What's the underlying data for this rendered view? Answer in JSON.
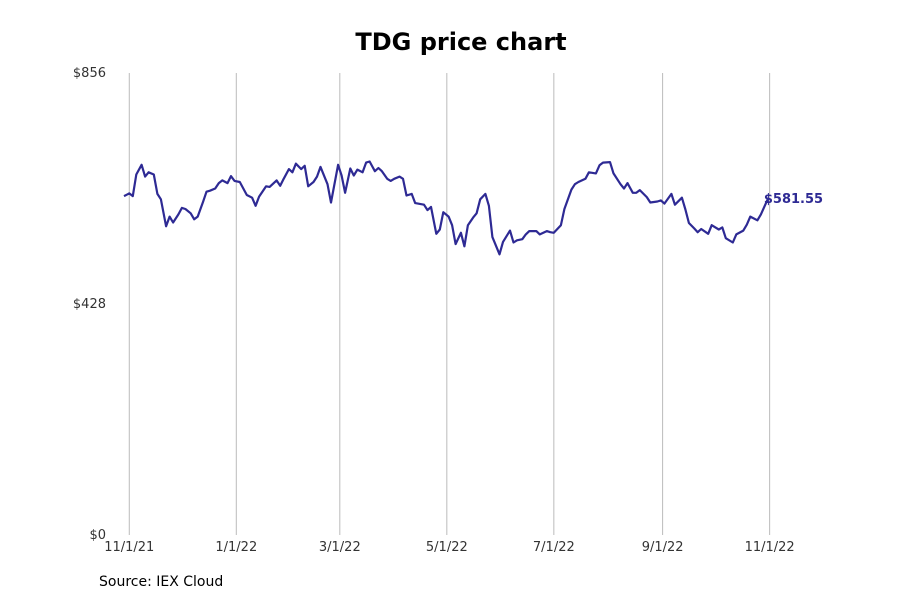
{
  "chart_data": {
    "type": "line",
    "title": "TDG price chart",
    "source": "Source: IEX Cloud",
    "xlabel": "",
    "ylabel": "",
    "grid": "vertical",
    "line_color": "#2e2a94",
    "grid_color": "#bbbbbb",
    "ylim": [
      0,
      856
    ],
    "y_ticks": [
      {
        "value": 0,
        "label": "$0"
      },
      {
        "value": 428,
        "label": "$428"
      },
      {
        "value": 856,
        "label": "$856"
      }
    ],
    "xlim": [
      "2021-10-25",
      "2022-11-28"
    ],
    "x_ticks": [
      {
        "date": "2021-11-01",
        "label": "11/1/21"
      },
      {
        "date": "2022-01-01",
        "label": "1/1/22"
      },
      {
        "date": "2022-03-01",
        "label": "3/1/22"
      },
      {
        "date": "2022-05-01",
        "label": "5/1/22"
      },
      {
        "date": "2022-07-01",
        "label": "7/1/22"
      },
      {
        "date": "2022-09-01",
        "label": "9/1/22"
      },
      {
        "date": "2022-11-01",
        "label": "11/1/22"
      }
    ],
    "last_value_label": "$581.55",
    "series": [
      {
        "x": [
          "2021-10-29",
          "2021-11-01",
          "2021-11-03",
          "2021-11-05",
          "2021-11-08",
          "2021-11-10",
          "2021-11-12",
          "2021-11-15",
          "2021-11-17",
          "2021-11-19",
          "2021-11-22",
          "2021-11-24",
          "2021-11-26",
          "2021-11-29",
          "2021-12-01",
          "2021-12-03",
          "2021-12-06",
          "2021-12-08",
          "2021-12-10",
          "2021-12-13",
          "2021-12-15",
          "2021-12-17",
          "2021-12-20",
          "2021-12-22",
          "2021-12-24",
          "2021-12-27",
          "2021-12-29",
          "2021-12-31",
          "2022-01-03",
          "2022-01-05",
          "2022-01-07",
          "2022-01-10",
          "2022-01-12",
          "2022-01-14",
          "2022-01-18",
          "2022-01-20",
          "2022-01-24",
          "2022-01-26",
          "2022-01-28",
          "2022-01-31",
          "2022-02-02",
          "2022-02-04",
          "2022-02-07",
          "2022-02-09",
          "2022-02-11",
          "2022-02-14",
          "2022-02-16",
          "2022-02-18",
          "2022-02-22",
          "2022-02-24",
          "2022-02-28",
          "2022-03-02",
          "2022-03-04",
          "2022-03-07",
          "2022-03-09",
          "2022-03-11",
          "2022-03-14",
          "2022-03-16",
          "2022-03-18",
          "2022-03-21",
          "2022-03-23",
          "2022-03-25",
          "2022-03-28",
          "2022-03-30",
          "2022-04-01",
          "2022-04-04",
          "2022-04-06",
          "2022-04-08",
          "2022-04-11",
          "2022-04-13",
          "2022-04-18",
          "2022-04-20",
          "2022-04-22",
          "2022-04-25",
          "2022-04-27",
          "2022-04-29",
          "2022-05-02",
          "2022-05-04",
          "2022-05-06",
          "2022-05-09",
          "2022-05-11",
          "2022-05-13",
          "2022-05-16",
          "2022-05-18",
          "2022-05-20",
          "2022-05-23",
          "2022-05-25",
          "2022-05-27",
          "2022-05-31",
          "2022-06-02",
          "2022-06-06",
          "2022-06-08",
          "2022-06-10",
          "2022-06-13",
          "2022-06-15",
          "2022-06-17",
          "2022-06-21",
          "2022-06-23",
          "2022-06-27",
          "2022-06-29",
          "2022-07-01",
          "2022-07-05",
          "2022-07-07",
          "2022-07-11",
          "2022-07-13",
          "2022-07-15",
          "2022-07-19",
          "2022-07-21",
          "2022-07-25",
          "2022-07-27",
          "2022-07-29",
          "2022-08-02",
          "2022-08-04",
          "2022-08-08",
          "2022-08-10",
          "2022-08-12",
          "2022-08-15",
          "2022-08-17",
          "2022-08-19",
          "2022-08-23",
          "2022-08-25",
          "2022-08-29",
          "2022-08-31",
          "2022-09-02",
          "2022-09-06",
          "2022-09-08",
          "2022-09-12",
          "2022-09-14",
          "2022-09-16",
          "2022-09-19",
          "2022-09-21",
          "2022-09-23",
          "2022-09-27",
          "2022-09-29",
          "2022-10-03",
          "2022-10-05",
          "2022-10-07",
          "2022-10-11",
          "2022-10-13",
          "2022-10-17",
          "2022-10-19",
          "2022-10-21",
          "2022-10-25",
          "2022-10-27",
          "2022-10-31"
        ],
        "values": [
          628,
          633,
          628,
          668,
          686,
          664,
          672,
          668,
          632,
          622,
          572,
          590,
          579,
          594,
          606,
          604,
          596,
          585,
          590,
          617,
          636,
          638,
          642,
          652,
          657,
          652,
          665,
          656,
          654,
          642,
          630,
          625,
          610,
          627,
          646,
          645,
          657,
          647,
          660,
          678,
          672,
          688,
          678,
          684,
          646,
          654,
          664,
          682,
          650,
          616,
          686,
          666,
          634,
          679,
          666,
          677,
          672,
          690,
          692,
          674,
          680,
          674,
          660,
          656,
          660,
          664,
          660,
          629,
          632,
          615,
          612,
          602,
          608,
          558,
          566,
          598,
          590,
          574,
          539,
          560,
          535,
          574,
          588,
          596,
          622,
          632,
          610,
          552,
          520,
          543,
          564,
          542,
          546,
          548,
          557,
          563,
          563,
          557,
          563,
          561,
          560,
          574,
          604,
          640,
          650,
          654,
          660,
          672,
          670,
          685,
          690,
          691,
          670,
          650,
          642,
          652,
          634,
          634,
          639,
          626,
          616,
          618,
          620,
          614,
          632,
          612,
          625,
          603,
          578,
          568,
          561,
          567,
          558,
          574,
          566,
          570,
          550,
          542,
          557,
          564,
          575,
          590,
          583,
          594,
          623
        ]
      }
    ]
  }
}
